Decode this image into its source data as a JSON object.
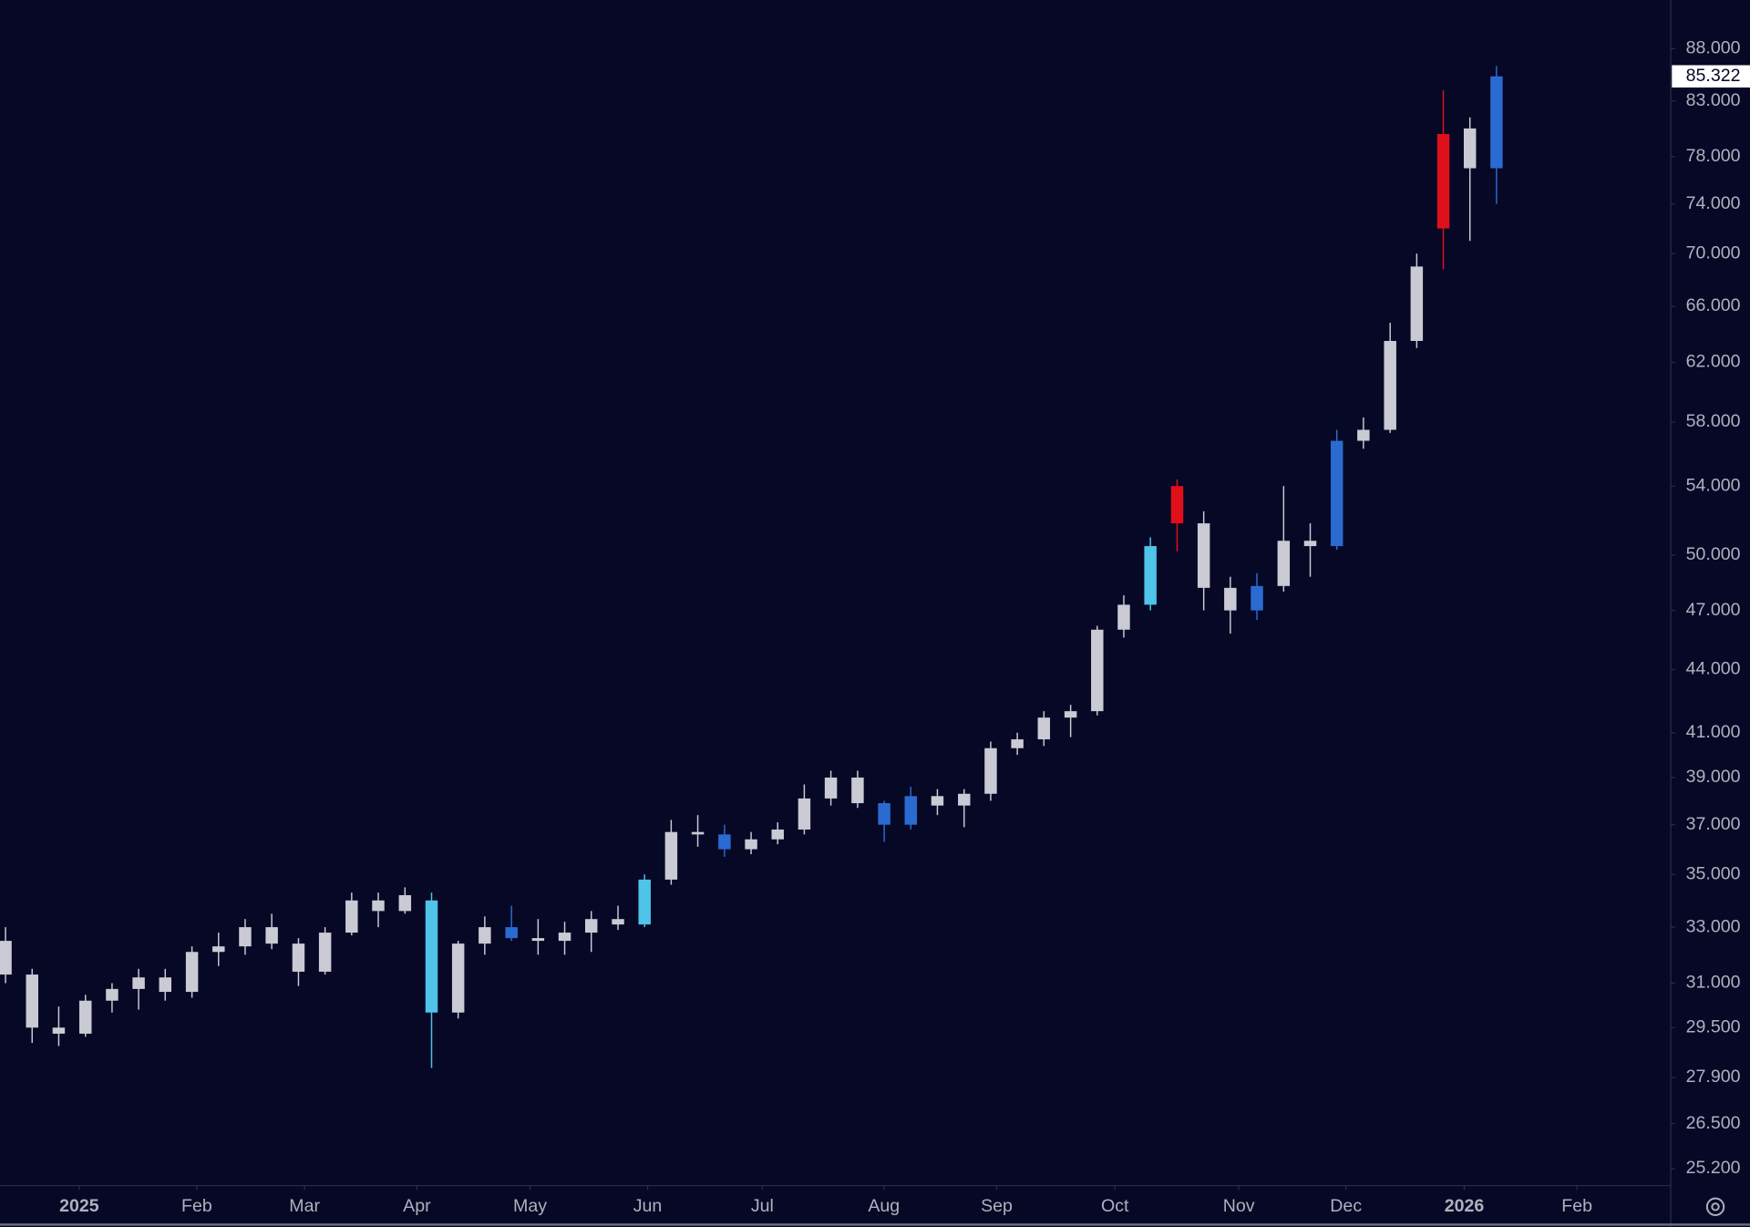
{
  "chart_data": {
    "type": "candlestick",
    "log_scale": true,
    "background": "#070826",
    "ylim": [
      24.73,
      92.9
    ],
    "yticks": [
      {
        "value": 88,
        "label": "88.000"
      },
      {
        "value": 83,
        "label": "83.000"
      },
      {
        "value": 78,
        "label": "78.000"
      },
      {
        "value": 74,
        "label": "74.000"
      },
      {
        "value": 70,
        "label": "70.000"
      },
      {
        "value": 66,
        "label": "66.000"
      },
      {
        "value": 62,
        "label": "62.000"
      },
      {
        "value": 58,
        "label": "58.000"
      },
      {
        "value": 54,
        "label": "54.000"
      },
      {
        "value": 50,
        "label": "50.000"
      },
      {
        "value": 47,
        "label": "47.000"
      },
      {
        "value": 44,
        "label": "44.000"
      },
      {
        "value": 41,
        "label": "41.000"
      },
      {
        "value": 39,
        "label": "39.000"
      },
      {
        "value": 37,
        "label": "37.000"
      },
      {
        "value": 35,
        "label": "35.000"
      },
      {
        "value": 33,
        "label": "33.000"
      },
      {
        "value": 31,
        "label": "31.000"
      },
      {
        "value": 29.5,
        "label": "29.500"
      },
      {
        "value": 27.9,
        "label": "27.900"
      },
      {
        "value": 26.5,
        "label": "26.500"
      },
      {
        "value": 25.2,
        "label": "25.200"
      }
    ],
    "xlim": [
      2024.9428,
      2026.1491
    ],
    "xticks": [
      {
        "value": 2025.0,
        "label": "2025"
      },
      {
        "value": 2025.0849,
        "label": "Feb"
      },
      {
        "value": 2025.1627,
        "label": "Mar"
      },
      {
        "value": 2025.2438,
        "label": "Apr"
      },
      {
        "value": 2025.3255,
        "label": "May"
      },
      {
        "value": 2025.4104,
        "label": "Jun"
      },
      {
        "value": 2025.4932,
        "label": "Jul"
      },
      {
        "value": 2025.581,
        "label": "Aug"
      },
      {
        "value": 2025.6624,
        "label": "Sep"
      },
      {
        "value": 2025.7478,
        "label": "Oct"
      },
      {
        "value": 2025.8372,
        "label": "Nov"
      },
      {
        "value": 2025.9146,
        "label": "Dec"
      },
      {
        "value": 2026.0,
        "label": "2026"
      },
      {
        "value": 2026.0814,
        "label": "Feb"
      }
    ],
    "bold_xticks": [
      0,
      12
    ],
    "last_price": 85.322,
    "x": [
      2024.9468,
      2024.966,
      2024.9852,
      2025.0045,
      2025.0237,
      2025.0429,
      2025.0621,
      2025.0814,
      2025.1006,
      2025.1198,
      2025.139,
      2025.1583,
      2025.1775,
      2025.1967,
      2025.2159,
      2025.2352,
      2025.2544,
      2025.2736,
      2025.2928,
      2025.3121,
      2025.3313,
      2025.3505,
      2025.3697,
      2025.389,
      2025.4082,
      2025.4274,
      2025.4466,
      2025.4659,
      2025.4851,
      2025.5043,
      2025.5235,
      2025.5427,
      2025.562,
      2025.5812,
      2025.6004,
      2025.6196,
      2025.6389,
      2025.6581,
      2025.6773,
      2025.6965,
      2025.7158,
      2025.735,
      2025.7542,
      2025.7734,
      2025.7927,
      2025.8119,
      2025.8311,
      2025.8503,
      2025.8696,
      2025.8888,
      2025.908,
      2025.9272,
      2025.9465,
      2025.9657,
      2025.9849,
      2026.0041,
      2026.0233
    ],
    "open": [
      32.5,
      31.3,
      29.5,
      29.3,
      30.4,
      30.8,
      31.2,
      30.7,
      32.1,
      32.3,
      33,
      32.4,
      31.4,
      32.8,
      34,
      33.6,
      34,
      30,
      32.4,
      33,
      32.6,
      32.5,
      32.8,
      33.3,
      33.1,
      34.8,
      36.7,
      36.6,
      36,
      36.4,
      36.8,
      38.1,
      39,
      37.9,
      37,
      38.2,
      37.8,
      38.3,
      40.3,
      40.7,
      41.7,
      42,
      46,
      47.3,
      54,
      51.8,
      48.2,
      47,
      48.3,
      50.8,
      50.5,
      56.8,
      57.5,
      63.5,
      80,
      80.5,
      77
    ],
    "high": [
      33,
      31.5,
      30.2,
      30.6,
      31,
      31.5,
      31.5,
      32.3,
      32.8,
      33.3,
      33.5,
      32.6,
      33,
      34.3,
      34.3,
      34.5,
      34.3,
      32.5,
      33.4,
      33.8,
      33.3,
      33.2,
      33.6,
      33.8,
      35,
      37.2,
      37.4,
      37,
      36.7,
      37.1,
      38.7,
      39.3,
      39.3,
      38,
      38.6,
      38.5,
      38.5,
      40.6,
      41,
      42,
      42.3,
      46.2,
      47.8,
      51,
      54.4,
      52.5,
      48.8,
      49,
      54,
      51.8,
      57.5,
      58.3,
      64.8,
      70,
      84,
      81.5,
      86.3
    ],
    "low": [
      31,
      29,
      28.9,
      29.2,
      30,
      30.1,
      30.4,
      30.5,
      31.6,
      32,
      32.2,
      30.9,
      31.3,
      32.7,
      33,
      33.5,
      28.2,
      29.8,
      32,
      32.5,
      32,
      32,
      32.1,
      32.9,
      33,
      34.6,
      36.1,
      35.7,
      35.8,
      36.2,
      36.6,
      37.8,
      37.7,
      36.3,
      36.8,
      37.4,
      36.9,
      38,
      40,
      40.4,
      40.8,
      41.8,
      45.6,
      47,
      50.2,
      47,
      45.8,
      46.5,
      48,
      48.8,
      50.3,
      56.3,
      57.3,
      63,
      68.8,
      71,
      74
    ],
    "close": [
      31.3,
      29.5,
      29.3,
      30.4,
      30.8,
      31.2,
      30.7,
      32.1,
      32.3,
      33,
      32.4,
      31.4,
      32.8,
      34,
      33.6,
      34.2,
      30,
      32.4,
      33,
      32.6,
      32.5,
      32.8,
      33.3,
      33.1,
      34.8,
      36.7,
      36.6,
      36,
      36.4,
      36.8,
      38.1,
      39,
      37.9,
      37,
      38.2,
      37.8,
      38.3,
      40.3,
      40.7,
      41.7,
      42,
      46,
      47.3,
      50.5,
      51.8,
      48.2,
      47,
      48.3,
      50.8,
      50.5,
      56.8,
      57.5,
      63.5,
      69,
      72,
      77,
      85.322
    ],
    "colors": [
      "#c9cad3",
      "#c9cad3",
      "#c9cad3",
      "#c9cad3",
      "#c9cad3",
      "#c9cad3",
      "#c9cad3",
      "#c9cad3",
      "#c9cad3",
      "#c9cad3",
      "#c9cad3",
      "#c9cad3",
      "#c9cad3",
      "#c9cad3",
      "#c9cad3",
      "#c9cad3",
      "#4fc3e8",
      "#c9cad3",
      "#c9cad3",
      "#2a6bd1",
      "#c9cad3",
      "#c9cad3",
      "#c9cad3",
      "#c9cad3",
      "#4fc3e8",
      "#c9cad3",
      "#c9cad3",
      "#2a6bd1",
      "#c9cad3",
      "#c9cad3",
      "#c9cad3",
      "#c9cad3",
      "#c9cad3",
      "#2a6bd1",
      "#2a6bd1",
      "#c9cad3",
      "#c9cad3",
      "#c9cad3",
      "#c9cad3",
      "#c9cad3",
      "#c9cad3",
      "#c9cad3",
      "#c9cad3",
      "#4fc3e8",
      "#e0101a",
      "#c9cad3",
      "#c9cad3",
      "#2a6bd1",
      "#c9cad3",
      "#c9cad3",
      "#2a6bd1",
      "#c9cad3",
      "#c9cad3",
      "#c9cad3",
      "#e0101a",
      "#c9cad3",
      "#2a6bd1"
    ]
  }
}
